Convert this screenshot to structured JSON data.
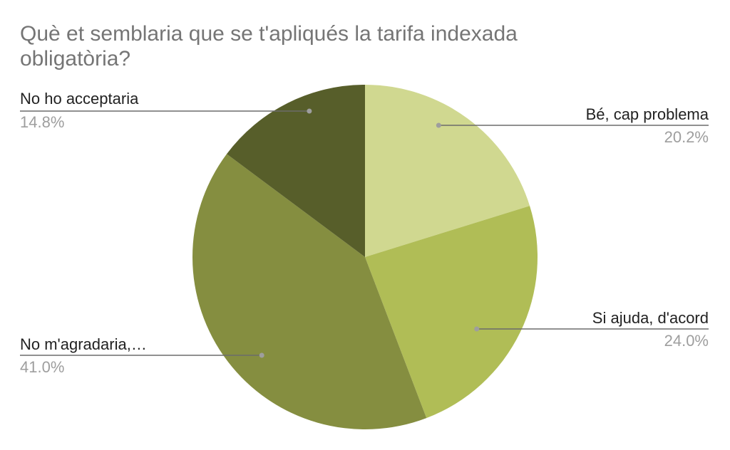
{
  "chart_data": {
    "type": "pie",
    "title": "Què et semblaria que se t'apliqués la tarifa indexada obligatòria?",
    "title_lines": [
      "Què et semblaria que se t'apliqués la tarifa indexada",
      "obligatòria?"
    ],
    "legend": "none",
    "slices": [
      {
        "label": "Bé, cap problema",
        "value": 20.2,
        "percent_label": "20.2%",
        "color": "#d0d890"
      },
      {
        "label": "Si ajuda, d'acord",
        "value": 24.0,
        "percent_label": "24.0%",
        "color": "#b0bd56"
      },
      {
        "label": "No m'agradaria,…",
        "value": 41.0,
        "percent_label": "41.0%",
        "color": "#858e40"
      },
      {
        "label": "No ho acceptaria",
        "value": 14.8,
        "percent_label": "14.8%",
        "color": "#575e2a"
      }
    ]
  }
}
